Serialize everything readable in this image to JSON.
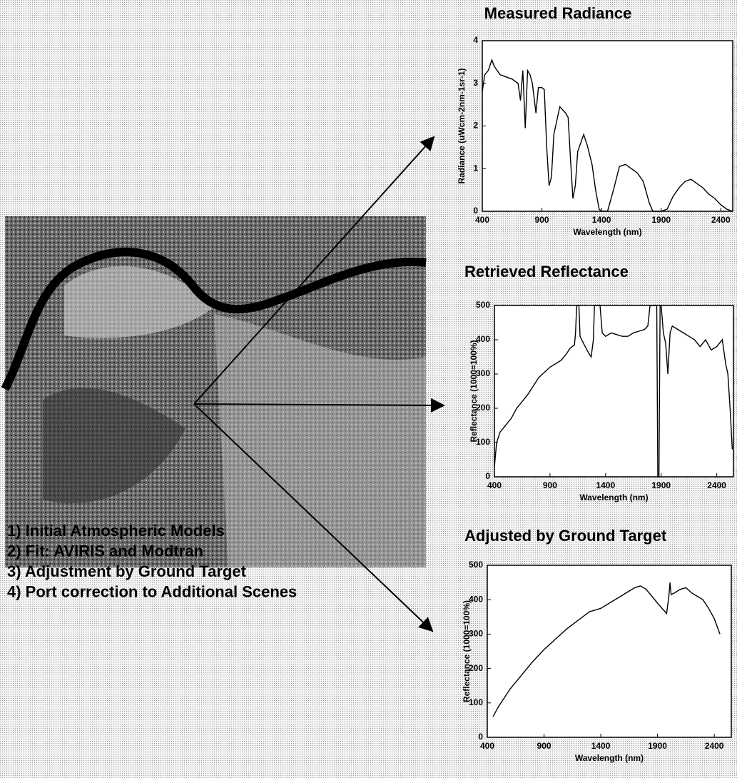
{
  "chart_data": [
    {
      "type": "line",
      "title": "Measured Radiance",
      "xlabel": "Wavelength (nm)",
      "ylabel": "Radiance (uWcm-2nm-1sr-1)",
      "color": "#000000",
      "x": [
        400,
        420,
        450,
        480,
        500,
        550,
        600,
        650,
        700,
        720,
        740,
        760,
        780,
        800,
        820,
        850,
        870,
        900,
        920,
        940,
        960,
        980,
        1000,
        1050,
        1100,
        1120,
        1140,
        1160,
        1180,
        1200,
        1250,
        1280,
        1320,
        1350,
        1380,
        1400,
        1450,
        1500,
        1550,
        1600,
        1650,
        1700,
        1750,
        1800,
        1830,
        1900,
        1950,
        2000,
        2050,
        2100,
        2150,
        2200,
        2250,
        2300,
        2350,
        2400,
        2450,
        2500
      ],
      "values": [
        2.8,
        3.2,
        3.3,
        3.55,
        3.4,
        3.2,
        3.15,
        3.1,
        3.0,
        2.6,
        3.3,
        1.95,
        3.3,
        3.2,
        3.0,
        2.3,
        2.9,
        2.9,
        2.85,
        1.5,
        0.6,
        0.8,
        1.8,
        2.45,
        2.3,
        2.2,
        1.2,
        0.3,
        0.6,
        1.4,
        1.8,
        1.55,
        1.1,
        0.5,
        0.05,
        0,
        0,
        0.5,
        1.05,
        1.1,
        1.0,
        0.9,
        0.7,
        0.2,
        0,
        0,
        0.05,
        0.35,
        0.55,
        0.7,
        0.75,
        0.65,
        0.55,
        0.4,
        0.3,
        0.15,
        0.05,
        0
      ],
      "xlim": [
        400,
        2500
      ],
      "ylim": [
        0,
        4
      ],
      "xticks": [
        400,
        900,
        1400,
        1900,
        2400
      ],
      "yticks": [
        0,
        1,
        2,
        3,
        4
      ]
    },
    {
      "type": "line",
      "title": "Retrieved Reflectance",
      "xlabel": "Wavelength (nm)",
      "ylabel": "Reflectance (1000=100%)",
      "color": "#000000",
      "x": [
        400,
        420,
        450,
        500,
        550,
        600,
        650,
        700,
        750,
        800,
        850,
        900,
        950,
        1000,
        1050,
        1080,
        1100,
        1120,
        1130,
        1140,
        1160,
        1170,
        1200,
        1250,
        1270,
        1290,
        1300,
        1350,
        1370,
        1400,
        1450,
        1500,
        1550,
        1600,
        1650,
        1700,
        1750,
        1780,
        1800,
        1850,
        1860,
        1870,
        1880,
        1890,
        1900,
        1920,
        1940,
        1960,
        1980,
        2000,
        2050,
        2100,
        2150,
        2200,
        2250,
        2300,
        2350,
        2400,
        2450,
        2480,
        2500,
        2520,
        2540
      ],
      "values": [
        30,
        100,
        130,
        150,
        170,
        200,
        220,
        240,
        265,
        290,
        305,
        320,
        330,
        340,
        360,
        375,
        380,
        385,
        420,
        500,
        500,
        410,
        390,
        360,
        350,
        400,
        500,
        500,
        420,
        410,
        420,
        415,
        410,
        410,
        420,
        425,
        430,
        440,
        500,
        500,
        500,
        0,
        0,
        500,
        500,
        420,
        390,
        300,
        420,
        440,
        430,
        420,
        410,
        400,
        380,
        400,
        370,
        380,
        400,
        330,
        300,
        200,
        80
      ],
      "xlim": [
        400,
        2550
      ],
      "ylim": [
        0,
        500
      ],
      "xticks": [
        400,
        900,
        1400,
        1900,
        2400
      ],
      "yticks": [
        0,
        100,
        200,
        300,
        400,
        500
      ]
    },
    {
      "type": "line",
      "title": "Adjusted by Ground Target",
      "xlabel": "Wavelength (nm)",
      "ylabel": "Reflectance (1000=100%)",
      "color": "#000000",
      "x": [
        450,
        500,
        550,
        600,
        700,
        800,
        900,
        1000,
        1100,
        1200,
        1300,
        1400,
        1500,
        1600,
        1700,
        1750,
        1800,
        1900,
        1980,
        2000,
        2010,
        2020,
        2050,
        2100,
        2150,
        2200,
        2250,
        2300,
        2350,
        2400,
        2450
      ],
      "values": [
        60,
        90,
        115,
        140,
        180,
        220,
        255,
        285,
        315,
        340,
        365,
        375,
        395,
        415,
        435,
        440,
        430,
        390,
        360,
        410,
        450,
        415,
        420,
        430,
        435,
        420,
        410,
        400,
        375,
        345,
        300
      ],
      "xlim": [
        400,
        2550
      ],
      "ylim": [
        0,
        500
      ],
      "xticks": [
        400,
        900,
        1400,
        1900,
        2400
      ],
      "yticks": [
        0,
        100,
        200,
        300,
        400,
        500
      ]
    }
  ],
  "steps": [
    "1) Initial Atmospheric Models",
    "2) Fit: AVIRIS and Modtran",
    "3) Adjustment by Ground Target",
    "4) Port correction to Additional Scenes"
  ]
}
